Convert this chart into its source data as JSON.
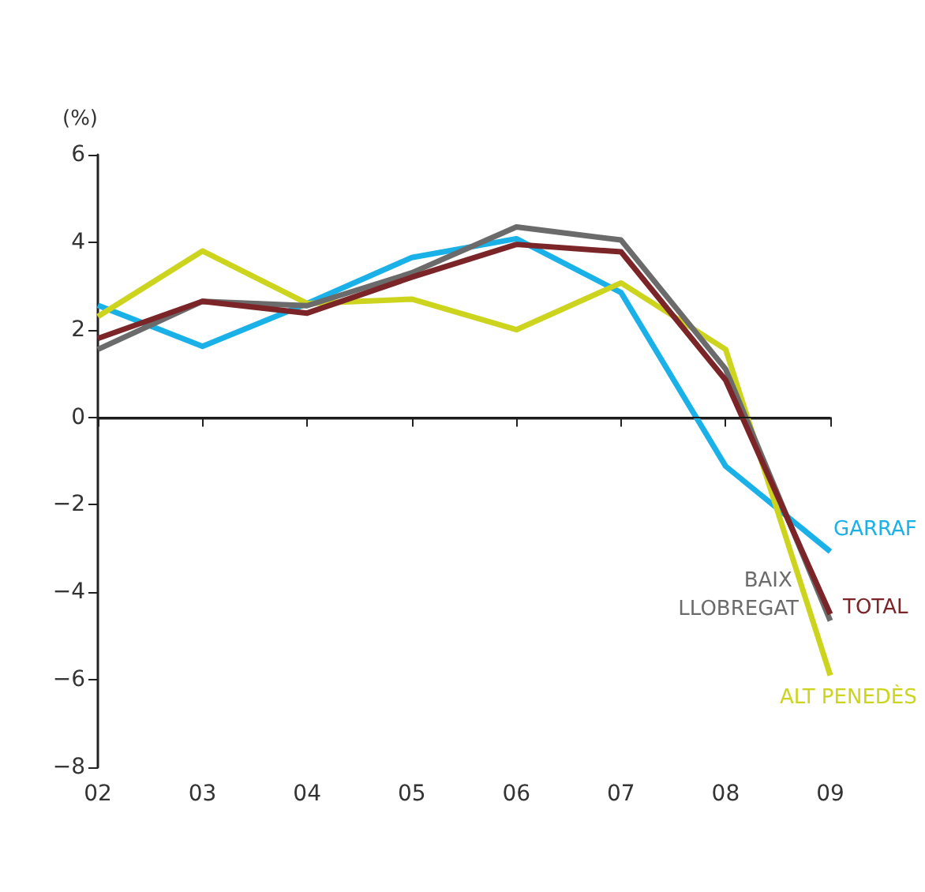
{
  "chart_data": {
    "type": "line",
    "ylabel": "(%)",
    "categories": [
      "02",
      "03",
      "04",
      "05",
      "06",
      "07",
      "08",
      "09"
    ],
    "ylim": [
      -8,
      6
    ],
    "yticks": [
      -8,
      -6,
      -4,
      -2,
      0,
      2,
      4,
      6
    ],
    "grid": false,
    "legend": false,
    "marker": "none",
    "line_style": "solid",
    "ref_lines": [
      {
        "axis": "y",
        "value": 0,
        "color": "#1a1a1a"
      }
    ],
    "series": [
      {
        "name": "GARRAF",
        "color": "#1ab0e8",
        "values": [
          2.56,
          1.62,
          2.6,
          3.65,
          4.08,
          2.85,
          -1.12,
          -3.07
        ]
      },
      {
        "name": "ALT PENEDÈS",
        "color": "#cdd41d",
        "values": [
          2.3,
          3.8,
          2.6,
          2.7,
          2.0,
          3.07,
          1.55,
          -5.9
        ]
      },
      {
        "name": "BAIX LLOBREGAT",
        "color": "#6b6b6b",
        "values": [
          1.55,
          2.65,
          2.55,
          3.3,
          4.35,
          4.05,
          1.1,
          -4.65
        ]
      },
      {
        "name": "TOTAL",
        "color": "#7b2528",
        "values": [
          1.8,
          2.65,
          2.38,
          3.2,
          3.95,
          3.78,
          0.85,
          -4.5
        ]
      }
    ]
  }
}
